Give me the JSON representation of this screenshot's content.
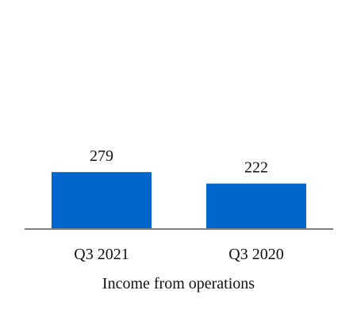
{
  "chart_data": {
    "type": "bar",
    "categories": [
      "Q3 2021",
      "Q3 2020"
    ],
    "values": [
      279,
      222
    ],
    "data_labels": [
      "279",
      "222"
    ],
    "title": "",
    "xlabel": "Income from operations",
    "ylabel": "",
    "ylim": [
      0,
      1000
    ],
    "grid": false,
    "legend": "none",
    "colors": {
      "bar": "#0066CC",
      "axis": "#7F7F7F",
      "text": "#111111"
    }
  }
}
